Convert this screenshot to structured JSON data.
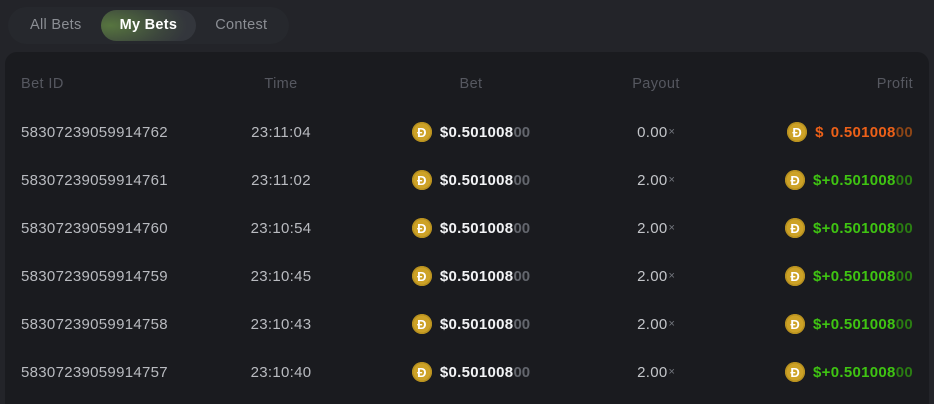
{
  "coin_symbol": "Đ",
  "coin_currency": "DOGE",
  "colors": {
    "win_green": "#3fc412",
    "loss_orange": "#ec6018",
    "coin_gold": "#cda227"
  },
  "tabs": [
    {
      "label": "All Bets",
      "active": false
    },
    {
      "label": "My Bets",
      "active": true
    },
    {
      "label": "Contest",
      "active": false
    }
  ],
  "table": {
    "columns": [
      "Bet ID",
      "Time",
      "Bet",
      "Payout",
      "Profit"
    ],
    "rows": [
      {
        "bet_id": "58307239059914762",
        "time": "23:11:04",
        "bet_amount": "$0.501008",
        "bet_dim": "00",
        "payout": "0.00",
        "payout_mult": "×",
        "profit_prefix": "$",
        "profit_amount": "0.501008",
        "profit_dim": "00",
        "result": "loss"
      },
      {
        "bet_id": "58307239059914761",
        "time": "23:11:02",
        "bet_amount": "$0.501008",
        "bet_dim": "00",
        "payout": "2.00",
        "payout_mult": "×",
        "profit_prefix": "$+",
        "profit_amount": "0.501008",
        "profit_dim": "00",
        "result": "win"
      },
      {
        "bet_id": "58307239059914760",
        "time": "23:10:54",
        "bet_amount": "$0.501008",
        "bet_dim": "00",
        "payout": "2.00",
        "payout_mult": "×",
        "profit_prefix": "$+",
        "profit_amount": "0.501008",
        "profit_dim": "00",
        "result": "win"
      },
      {
        "bet_id": "58307239059914759",
        "time": "23:10:45",
        "bet_amount": "$0.501008",
        "bet_dim": "00",
        "payout": "2.00",
        "payout_mult": "×",
        "profit_prefix": "$+",
        "profit_amount": "0.501008",
        "profit_dim": "00",
        "result": "win"
      },
      {
        "bet_id": "58307239059914758",
        "time": "23:10:43",
        "bet_amount": "$0.501008",
        "bet_dim": "00",
        "payout": "2.00",
        "payout_mult": "×",
        "profit_prefix": "$+",
        "profit_amount": "0.501008",
        "profit_dim": "00",
        "result": "win"
      },
      {
        "bet_id": "58307239059914757",
        "time": "23:10:40",
        "bet_amount": "$0.501008",
        "bet_dim": "00",
        "payout": "2.00",
        "payout_mult": "×",
        "profit_prefix": "$+",
        "profit_amount": "0.501008",
        "profit_dim": "00",
        "result": "win"
      }
    ]
  }
}
